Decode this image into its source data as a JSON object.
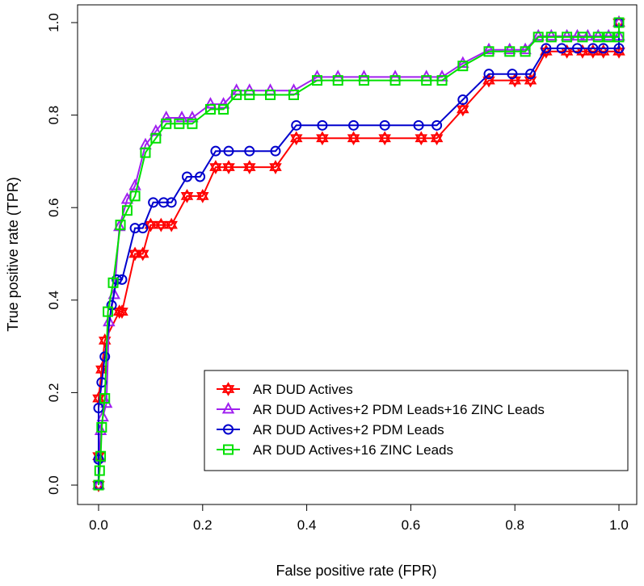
{
  "chart_data": {
    "type": "line",
    "title": "",
    "xlabel": "False positive rate (FPR)",
    "ylabel": "True positive rate (TPR)",
    "xlim": [
      0,
      1
    ],
    "ylim": [
      0,
      1
    ],
    "x_ticks": [
      "0.0",
      "0.2",
      "0.4",
      "0.6",
      "0.8",
      "1.0"
    ],
    "y_ticks": [
      "0.0",
      "0.2",
      "0.4",
      "0.6",
      "0.8",
      "1.0"
    ],
    "grid": false,
    "legend_position": "bottom-right",
    "series": [
      {
        "name": "AR DUD Actives",
        "color": "#ff0000",
        "marker": "star-of-david",
        "points": [
          [
            0,
            0
          ],
          [
            0,
            0.0625
          ],
          [
            0,
            0.1875
          ],
          [
            0.006,
            0.25
          ],
          [
            0.012,
            0.3125
          ],
          [
            0.04,
            0.375
          ],
          [
            0.045,
            0.375
          ],
          [
            0.07,
            0.5
          ],
          [
            0.085,
            0.5
          ],
          [
            0.1,
            0.5625
          ],
          [
            0.12,
            0.5625
          ],
          [
            0.14,
            0.5625
          ],
          [
            0.17,
            0.625
          ],
          [
            0.2,
            0.625
          ],
          [
            0.225,
            0.6875
          ],
          [
            0.25,
            0.6875
          ],
          [
            0.29,
            0.6875
          ],
          [
            0.34,
            0.6875
          ],
          [
            0.38,
            0.75
          ],
          [
            0.43,
            0.75
          ],
          [
            0.49,
            0.75
          ],
          [
            0.55,
            0.75
          ],
          [
            0.62,
            0.75
          ],
          [
            0.65,
            0.75
          ],
          [
            0.7,
            0.8125
          ],
          [
            0.75,
            0.875
          ],
          [
            0.8,
            0.875
          ],
          [
            0.83,
            0.875
          ],
          [
            0.86,
            0.9375
          ],
          [
            0.9,
            0.9375
          ],
          [
            0.93,
            0.9375
          ],
          [
            0.95,
            0.9375
          ],
          [
            0.97,
            0.9375
          ],
          [
            1.0,
            0.9375
          ],
          [
            1.0,
            1.0
          ]
        ]
      },
      {
        "name": "AR DUD Actives+2 PDM Leads+16 ZINC Leads",
        "color": "#a020f0",
        "marker": "triangle",
        "points": [
          [
            0,
            0
          ],
          [
            0.002,
            0.0588
          ],
          [
            0.004,
            0.1176
          ],
          [
            0.008,
            0.1471
          ],
          [
            0.015,
            0.1765
          ],
          [
            0.02,
            0.3529
          ],
          [
            0.03,
            0.4118
          ],
          [
            0.04,
            0.5588
          ],
          [
            0.055,
            0.6176
          ],
          [
            0.07,
            0.6471
          ],
          [
            0.09,
            0.7353
          ],
          [
            0.11,
            0.7647
          ],
          [
            0.13,
            0.7941
          ],
          [
            0.16,
            0.7941
          ],
          [
            0.18,
            0.7941
          ],
          [
            0.215,
            0.8235
          ],
          [
            0.24,
            0.8235
          ],
          [
            0.265,
            0.8529
          ],
          [
            0.29,
            0.8529
          ],
          [
            0.33,
            0.8529
          ],
          [
            0.375,
            0.8529
          ],
          [
            0.42,
            0.8824
          ],
          [
            0.46,
            0.8824
          ],
          [
            0.51,
            0.8824
          ],
          [
            0.57,
            0.8824
          ],
          [
            0.63,
            0.8824
          ],
          [
            0.66,
            0.8824
          ],
          [
            0.7,
            0.9118
          ],
          [
            0.75,
            0.9412
          ],
          [
            0.79,
            0.9412
          ],
          [
            0.82,
            0.9412
          ],
          [
            0.845,
            0.9706
          ],
          [
            0.87,
            0.9706
          ],
          [
            0.9,
            0.9706
          ],
          [
            0.92,
            0.9706
          ],
          [
            0.94,
            0.9706
          ],
          [
            0.96,
            0.9706
          ],
          [
            0.98,
            0.9706
          ],
          [
            1.0,
            0.9706
          ],
          [
            1.0,
            1.0
          ]
        ]
      },
      {
        "name": "AR DUD Actives+2 PDM Leads",
        "color": "#0000cd",
        "marker": "circle",
        "points": [
          [
            0,
            0
          ],
          [
            0,
            0.0556
          ],
          [
            0,
            0.1667
          ],
          [
            0.006,
            0.2222
          ],
          [
            0.012,
            0.2778
          ],
          [
            0.025,
            0.3889
          ],
          [
            0.035,
            0.4444
          ],
          [
            0.045,
            0.4444
          ],
          [
            0.07,
            0.5556
          ],
          [
            0.085,
            0.5556
          ],
          [
            0.105,
            0.6111
          ],
          [
            0.125,
            0.6111
          ],
          [
            0.14,
            0.6111
          ],
          [
            0.17,
            0.6667
          ],
          [
            0.195,
            0.6667
          ],
          [
            0.225,
            0.7222
          ],
          [
            0.25,
            0.7222
          ],
          [
            0.29,
            0.7222
          ],
          [
            0.34,
            0.7222
          ],
          [
            0.38,
            0.7778
          ],
          [
            0.43,
            0.7778
          ],
          [
            0.49,
            0.7778
          ],
          [
            0.55,
            0.7778
          ],
          [
            0.615,
            0.7778
          ],
          [
            0.65,
            0.7778
          ],
          [
            0.7,
            0.8333
          ],
          [
            0.75,
            0.8889
          ],
          [
            0.795,
            0.8889
          ],
          [
            0.83,
            0.8889
          ],
          [
            0.86,
            0.9444
          ],
          [
            0.89,
            0.9444
          ],
          [
            0.92,
            0.9444
          ],
          [
            0.95,
            0.9444
          ],
          [
            0.97,
            0.9444
          ],
          [
            1.0,
            0.9444
          ],
          [
            1.0,
            1.0
          ]
        ]
      },
      {
        "name": "AR DUD Actives+16 ZINC Leads",
        "color": "#00e000",
        "marker": "square",
        "points": [
          [
            0,
            0
          ],
          [
            0.002,
            0.0313
          ],
          [
            0.004,
            0.0625
          ],
          [
            0.006,
            0.125
          ],
          [
            0.012,
            0.1875
          ],
          [
            0.018,
            0.375
          ],
          [
            0.028,
            0.4375
          ],
          [
            0.042,
            0.5625
          ],
          [
            0.055,
            0.5938
          ],
          [
            0.07,
            0.625
          ],
          [
            0.09,
            0.7188
          ],
          [
            0.11,
            0.75
          ],
          [
            0.13,
            0.7813
          ],
          [
            0.155,
            0.7813
          ],
          [
            0.18,
            0.7813
          ],
          [
            0.215,
            0.8125
          ],
          [
            0.24,
            0.8125
          ],
          [
            0.265,
            0.8438
          ],
          [
            0.29,
            0.8438
          ],
          [
            0.33,
            0.8438
          ],
          [
            0.375,
            0.8438
          ],
          [
            0.42,
            0.875
          ],
          [
            0.46,
            0.875
          ],
          [
            0.51,
            0.875
          ],
          [
            0.57,
            0.875
          ],
          [
            0.63,
            0.875
          ],
          [
            0.66,
            0.875
          ],
          [
            0.7,
            0.9063
          ],
          [
            0.75,
            0.9375
          ],
          [
            0.79,
            0.9375
          ],
          [
            0.82,
            0.9375
          ],
          [
            0.845,
            0.9688
          ],
          [
            0.87,
            0.9688
          ],
          [
            0.9,
            0.9688
          ],
          [
            0.93,
            0.9688
          ],
          [
            0.96,
            0.9688
          ],
          [
            0.98,
            0.9688
          ],
          [
            1.0,
            0.9688
          ],
          [
            1.0,
            1.0
          ]
        ]
      }
    ]
  }
}
